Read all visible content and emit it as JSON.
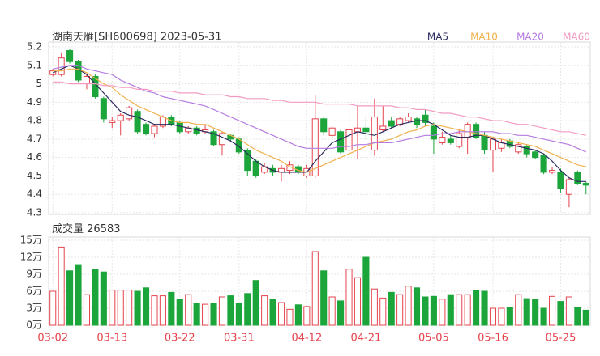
{
  "chart_data": {
    "type": "candlestick",
    "title": "湖南天雁[SH600698] 2023-05-31",
    "categories": [
      "03-02",
      null,
      null,
      null,
      null,
      null,
      null,
      "03-13",
      null,
      null,
      null,
      null,
      null,
      null,
      null,
      "03-22",
      null,
      null,
      null,
      null,
      null,
      null,
      "03-31",
      null,
      null,
      null,
      null,
      null,
      null,
      null,
      "04-12",
      null,
      null,
      null,
      null,
      null,
      null,
      "04-21",
      null,
      null,
      null,
      null,
      null,
      null,
      null,
      "05-05",
      null,
      null,
      null,
      null,
      null,
      null,
      "05-16",
      null,
      null,
      null,
      null,
      null,
      null,
      null,
      "05-25",
      null,
      null,
      null
    ],
    "open": [
      5.05,
      5.05,
      5.18,
      5.12,
      5.0,
      5.04,
      4.92,
      4.79,
      4.8,
      4.81,
      4.85,
      4.78,
      4.73,
      4.77,
      4.82,
      4.79,
      4.74,
      4.76,
      4.74,
      4.74,
      4.67,
      4.72,
      4.7,
      4.64,
      4.58,
      4.52,
      4.54,
      4.52,
      4.53,
      4.55,
      4.5,
      4.5,
      4.81,
      4.72,
      4.74,
      4.64,
      4.74,
      4.76,
      4.64,
      4.75,
      4.8,
      4.78,
      4.8,
      4.81,
      4.83,
      4.77,
      4.68,
      4.7,
      4.66,
      4.71,
      4.78,
      4.72,
      4.64,
      4.65,
      4.69,
      4.63,
      4.66,
      4.63,
      4.61,
      4.52,
      4.52,
      4.4,
      4.52,
      4.46
    ],
    "high": [
      5.08,
      5.17,
      5.19,
      5.13,
      5.05,
      5.05,
      4.93,
      4.82,
      4.84,
      4.88,
      4.86,
      4.79,
      4.78,
      4.83,
      4.83,
      4.8,
      4.77,
      4.77,
      4.78,
      4.75,
      4.74,
      4.73,
      4.71,
      4.65,
      4.59,
      4.57,
      4.56,
      4.56,
      4.58,
      4.56,
      4.56,
      4.94,
      4.82,
      4.77,
      4.75,
      4.9,
      4.88,
      4.82,
      4.92,
      4.88,
      4.82,
      4.82,
      4.84,
      4.82,
      4.86,
      4.79,
      4.74,
      4.72,
      4.75,
      4.79,
      4.79,
      4.74,
      4.71,
      4.7,
      4.7,
      4.68,
      4.67,
      4.64,
      4.62,
      4.55,
      4.54,
      4.49,
      4.53,
      4.47
    ],
    "low": [
      5.04,
      5.04,
      5.11,
      5.01,
      4.97,
      4.92,
      4.79,
      4.76,
      4.72,
      4.8,
      4.73,
      4.72,
      4.71,
      4.76,
      4.77,
      4.73,
      4.73,
      4.72,
      4.73,
      4.66,
      4.61,
      4.69,
      4.62,
      4.5,
      4.49,
      4.51,
      4.5,
      4.47,
      4.51,
      4.51,
      4.49,
      4.49,
      4.72,
      4.7,
      4.62,
      4.63,
      4.59,
      4.7,
      4.61,
      4.74,
      4.76,
      4.77,
      4.79,
      4.76,
      4.77,
      4.62,
      4.67,
      4.67,
      4.65,
      4.62,
      4.7,
      4.62,
      4.52,
      4.63,
      4.65,
      4.62,
      4.6,
      4.59,
      4.51,
      4.51,
      4.41,
      4.33,
      4.45,
      4.4
    ],
    "close": [
      5.07,
      5.14,
      5.12,
      5.02,
      5.04,
      4.93,
      4.81,
      4.8,
      4.83,
      4.87,
      4.74,
      4.73,
      4.77,
      4.82,
      4.78,
      4.74,
      4.76,
      4.73,
      4.75,
      4.67,
      4.73,
      4.7,
      4.63,
      4.53,
      4.5,
      4.55,
      4.52,
      4.54,
      4.56,
      4.52,
      4.54,
      4.81,
      4.74,
      4.76,
      4.63,
      4.75,
      4.76,
      4.74,
      4.82,
      4.77,
      4.77,
      4.81,
      4.82,
      4.78,
      4.79,
      4.7,
      4.71,
      4.68,
      4.73,
      4.78,
      4.71,
      4.64,
      4.7,
      4.68,
      4.66,
      4.67,
      4.62,
      4.6,
      4.52,
      4.53,
      4.43,
      4.48,
      4.46,
      4.45
    ],
    "up_color": "#e5434d",
    "down_color": "#1ba53a",
    "series": [
      {
        "name": "MA5",
        "color": "#2b2d5e",
        "values": [
          5.06,
          5.08,
          5.1,
          5.08,
          5.05,
          5.0,
          4.95,
          4.9,
          4.85,
          4.83,
          4.82,
          4.8,
          4.78,
          4.78,
          4.78,
          4.77,
          4.76,
          4.75,
          4.74,
          4.73,
          4.71,
          4.69,
          4.66,
          4.62,
          4.58,
          4.55,
          4.53,
          4.52,
          4.52,
          4.52,
          4.52,
          4.58,
          4.63,
          4.68,
          4.7,
          4.72,
          4.74,
          4.73,
          4.72,
          4.74,
          4.76,
          4.78,
          4.79,
          4.8,
          4.8,
          4.78,
          4.75,
          4.72,
          4.71,
          4.71,
          4.72,
          4.72,
          4.7,
          4.68,
          4.67,
          4.66,
          4.65,
          4.64,
          4.62,
          4.58,
          4.53,
          4.49,
          4.47,
          4.47
        ]
      },
      {
        "name": "MA10",
        "color": "#f1b14c",
        "values": [
          5.07,
          5.07,
          5.08,
          5.08,
          5.06,
          5.03,
          5.0,
          4.98,
          4.94,
          4.91,
          4.88,
          4.86,
          4.84,
          4.82,
          4.8,
          4.79,
          4.79,
          4.78,
          4.78,
          4.76,
          4.74,
          4.72,
          4.7,
          4.67,
          4.64,
          4.62,
          4.6,
          4.58,
          4.55,
          4.53,
          4.52,
          4.54,
          4.56,
          4.58,
          4.6,
          4.62,
          4.64,
          4.66,
          4.68,
          4.69,
          4.7,
          4.72,
          4.74,
          4.75,
          4.77,
          4.78,
          4.77,
          4.76,
          4.75,
          4.74,
          4.73,
          4.72,
          4.71,
          4.7,
          4.69,
          4.68,
          4.67,
          4.66,
          4.64,
          4.62,
          4.6,
          4.58,
          4.56,
          4.55
        ]
      },
      {
        "name": "MA20",
        "color": "#b47be0",
        "values": [
          5.08,
          5.09,
          5.1,
          5.1,
          5.08,
          5.07,
          5.06,
          5.05,
          5.02,
          5.0,
          4.98,
          4.96,
          4.95,
          4.93,
          4.92,
          4.91,
          4.9,
          4.89,
          4.88,
          4.86,
          4.84,
          4.82,
          4.8,
          4.78,
          4.76,
          4.74,
          4.72,
          4.7,
          4.68,
          4.66,
          4.65,
          4.65,
          4.65,
          4.65,
          4.66,
          4.66,
          4.67,
          4.67,
          4.68,
          4.68,
          4.68,
          4.69,
          4.7,
          4.71,
          4.72,
          4.72,
          4.73,
          4.73,
          4.74,
          4.74,
          4.74,
          4.74,
          4.74,
          4.73,
          4.73,
          4.72,
          4.72,
          4.71,
          4.7,
          4.69,
          4.68,
          4.67,
          4.65,
          4.63
        ]
      },
      {
        "name": "MA60",
        "color": "#f29bc2",
        "values": [
          5.01,
          5.01,
          5.0,
          5.0,
          5.0,
          5.0,
          4.99,
          4.99,
          4.98,
          4.98,
          4.97,
          4.97,
          4.96,
          4.96,
          4.96,
          4.95,
          4.95,
          4.95,
          4.94,
          4.94,
          4.94,
          4.93,
          4.93,
          4.92,
          4.92,
          4.92,
          4.91,
          4.91,
          4.9,
          4.9,
          4.9,
          4.9,
          4.89,
          4.89,
          4.89,
          4.89,
          4.88,
          4.88,
          4.88,
          4.88,
          4.88,
          4.87,
          4.87,
          4.86,
          4.86,
          4.85,
          4.84,
          4.84,
          4.83,
          4.82,
          4.82,
          4.81,
          4.8,
          4.8,
          4.79,
          4.78,
          4.78,
          4.77,
          4.76,
          4.75,
          4.74,
          4.74,
          4.73,
          4.72
        ]
      }
    ],
    "ylim": [
      4.3,
      5.2
    ],
    "yticks": [
      5.2,
      5.1,
      5,
      4.9,
      4.8,
      4.7,
      4.6,
      4.5,
      4.4,
      4.3
    ],
    "volume": {
      "label": "成交量",
      "values": [
        60000,
        138000,
        96000,
        107000,
        54000,
        98000,
        94000,
        62000,
        62000,
        62000,
        60000,
        66000,
        52000,
        52000,
        58000,
        46000,
        54000,
        39000,
        37000,
        38000,
        50000,
        52000,
        38000,
        56000,
        79000,
        52000,
        46000,
        40000,
        28000,
        36000,
        33000,
        130000,
        96000,
        50000,
        43000,
        99000,
        84000,
        120000,
        64000,
        48000,
        58000,
        54000,
        69000,
        66000,
        50000,
        51000,
        46000,
        54000,
        54000,
        54000,
        62000,
        60000,
        30000,
        30000,
        31000,
        54000,
        47000,
        45000,
        30000,
        51000,
        42000,
        50000,
        32000,
        26583
      ],
      "ylim": [
        0,
        150000
      ],
      "yticks": [
        {
          "value": 150000,
          "label": "15万"
        },
        {
          "value": 120000,
          "label": "12万"
        },
        {
          "value": 90000,
          "label": "9万"
        },
        {
          "value": 60000,
          "label": "6万"
        },
        {
          "value": 30000,
          "label": "3万"
        },
        {
          "value": 0,
          "label": "0万"
        }
      ]
    }
  }
}
